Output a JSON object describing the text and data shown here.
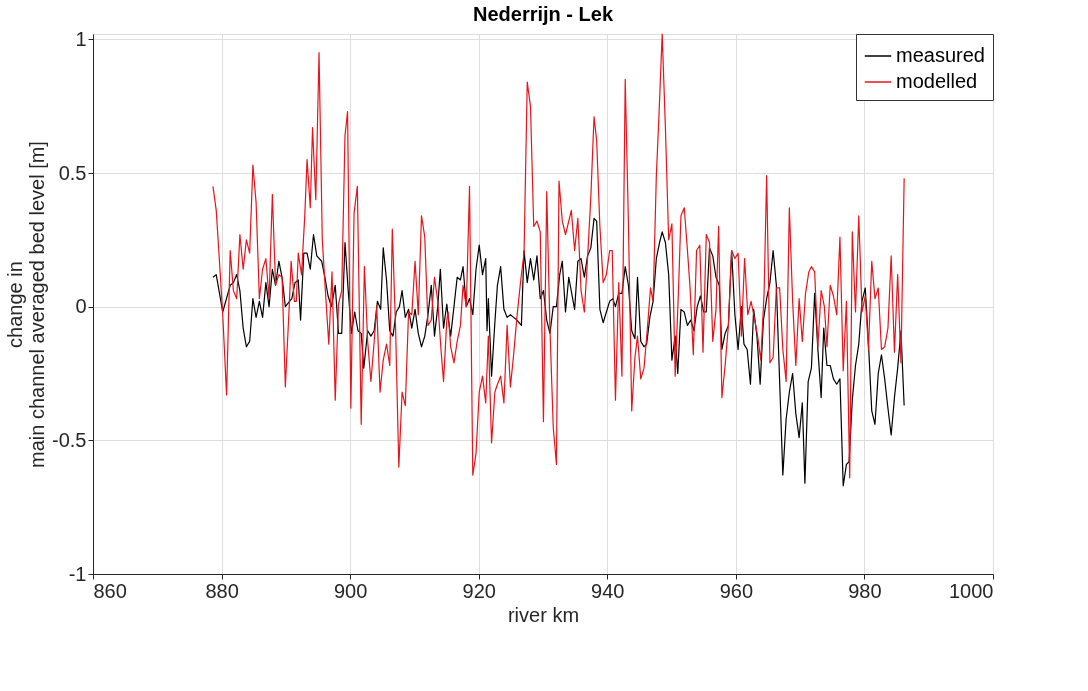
{
  "chart_data": {
    "type": "line",
    "title": "Nederrijn - Lek",
    "xlabel": "river km",
    "ylabel": "change in\nmain channel averaged bed level [m]",
    "xlim": [
      860,
      1000
    ],
    "xticks": [
      860,
      880,
      900,
      920,
      940,
      960,
      980,
      1000
    ],
    "ylim": [
      -1,
      1.02
    ],
    "yticks": [
      -1,
      -0.5,
      0,
      0.5,
      1
    ],
    "grid": true,
    "legend": "top right",
    "line_style": "solid",
    "marker": "none",
    "series": [
      {
        "name": "measured",
        "color": "#000000",
        "x": [
          878.66,
          879.17,
          880.18,
          881.34,
          881.84,
          882.35,
          882.85,
          883.36,
          883.86,
          884.37,
          884.87,
          885.37,
          885.88,
          886.38,
          886.89,
          887.39,
          887.9,
          888.4,
          888.91,
          889.41,
          889.92,
          890.92,
          891.43,
          891.93,
          892.29,
          892.79,
          893.3,
          893.8,
          894.3,
          894.81,
          895.57,
          896.07,
          896.57,
          897.08,
          897.68,
          898.19,
          898.69,
          899.2,
          899.7,
          900.21,
          900.71,
          901.22,
          901.72,
          902.12,
          902.73,
          903.23,
          903.74,
          904.24,
          904.75,
          905.15,
          905.66,
          906.16,
          906.66,
          907.17,
          907.67,
          908.08,
          908.58,
          909.09,
          909.59,
          910.1,
          910.6,
          911.1,
          911.61,
          912.11,
          912.62,
          913.12,
          913.63,
          914.03,
          914.53,
          915.04,
          915.24,
          915.64,
          916.15,
          916.65,
          917.16,
          917.56,
          918.07,
          918.57,
          919.08,
          919.58,
          920.08,
          920.59,
          921.09,
          921.29,
          921.5,
          922.0,
          922.51,
          922.91,
          923.41,
          923.92,
          924.42,
          924.93,
          925.43,
          925.94,
          926.64,
          927.05,
          927.55,
          928.05,
          928.56,
          929.06,
          929.57,
          930.07,
          930.58,
          931.08,
          931.59,
          932.09,
          932.6,
          933.0,
          933.5,
          934.01,
          934.92,
          935.42,
          935.92,
          936.43,
          936.93,
          937.44,
          937.94,
          938.35,
          938.85,
          939.36,
          939.86,
          940.37,
          940.87,
          941.27,
          941.78,
          942.28,
          942.79,
          943.29,
          943.8,
          944.3,
          944.7,
          945.21,
          945.71,
          946.12,
          946.62,
          947.13,
          947.63,
          948.13,
          948.54,
          949.04,
          949.55,
          950.05,
          950.56,
          950.96,
          951.46,
          951.97,
          952.47,
          952.98,
          953.48,
          953.99,
          954.49,
          955.0,
          955.4,
          955.9,
          956.41,
          956.91,
          957.42,
          957.83,
          958.33,
          958.84,
          959.34,
          959.85,
          960.35,
          960.86,
          961.26,
          961.76,
          962.27,
          962.77,
          963.28,
          963.78,
          964.29,
          964.79,
          965.3,
          965.8,
          966.3,
          966.81,
          967.31,
          967.82,
          968.32,
          968.83,
          969.33,
          969.84,
          970.34,
          970.74,
          971.25,
          971.75,
          972.26,
          972.76,
          973.27,
          973.67,
          974.17,
          974.68,
          975.18,
          975.69,
          976.19,
          976.7,
          977.2,
          977.61,
          978.11,
          978.61,
          979.12,
          979.62,
          980.13,
          980.63,
          981.14,
          981.64,
          982.15,
          982.65,
          983.15,
          983.66,
          984.16,
          984.67,
          985.17,
          985.68,
          986.18
        ],
        "values": [
          0.11,
          0.12,
          -0.02,
          0.08,
          0.09,
          0.12,
          0.06,
          -0.08,
          -0.15,
          -0.13,
          0.03,
          -0.04,
          0.02,
          -0.04,
          0.09,
          0.0,
          0.14,
          0.08,
          0.17,
          0.11,
          0.0,
          0.03,
          0.09,
          0.1,
          -0.05,
          0.2,
          0.2,
          0.14,
          0.27,
          0.19,
          0.17,
          0.11,
          0.04,
          0.0,
          0.08,
          -0.1,
          -0.1,
          0.24,
          0.06,
          -0.1,
          -0.02,
          -0.09,
          -0.1,
          -0.23,
          -0.09,
          -0.11,
          -0.09,
          0.02,
          -0.01,
          0.22,
          0.1,
          -0.09,
          -0.11,
          -0.02,
          0.0,
          0.06,
          -0.04,
          -0.01,
          -0.08,
          -0.01,
          -0.1,
          -0.15,
          -0.11,
          -0.03,
          0.08,
          -0.11,
          0.0,
          0.14,
          -0.08,
          0.01,
          -0.04,
          -0.11,
          0.0,
          0.11,
          0.1,
          0.15,
          0.0,
          0.03,
          -0.03,
          0.14,
          0.23,
          0.12,
          0.18,
          -0.09,
          0.03,
          -0.26,
          -0.06,
          0.08,
          0.15,
          -0.01,
          -0.04,
          -0.03,
          -0.04,
          -0.05,
          -0.07,
          0.21,
          0.09,
          0.18,
          0.1,
          0.19,
          0.03,
          0.06,
          -0.05,
          -0.1,
          0.0,
          0.0,
          0.12,
          0.17,
          -0.02,
          0.11,
          -0.01,
          0.17,
          0.18,
          0.11,
          0.19,
          0.22,
          0.33,
          0.32,
          -0.01,
          -0.06,
          -0.02,
          0.02,
          0.03,
          0.0,
          0.05,
          0.05,
          0.15,
          0.08,
          -0.09,
          -0.12,
          0.11,
          -0.13,
          -0.15,
          -0.14,
          -0.04,
          0.02,
          0.18,
          0.24,
          0.28,
          0.24,
          0.12,
          -0.2,
          -0.11,
          -0.25,
          -0.01,
          -0.02,
          -0.07,
          -0.05,
          -0.09,
          0.0,
          0.04,
          -0.02,
          -0.02,
          0.22,
          0.19,
          0.11,
          0.08,
          -0.16,
          -0.1,
          -0.07,
          0.21,
          -0.03,
          -0.16,
          0.0,
          -0.14,
          -0.16,
          -0.29,
          -0.01,
          -0.11,
          -0.29,
          -0.05,
          0.03,
          0.09,
          0.21,
          0.08,
          -0.28,
          -0.63,
          -0.42,
          -0.32,
          -0.25,
          -0.4,
          -0.49,
          -0.36,
          -0.66,
          -0.28,
          -0.23,
          0.05,
          -0.16,
          -0.34,
          -0.08,
          -0.22,
          -0.22,
          -0.27,
          -0.29,
          -0.27,
          -0.67,
          -0.59,
          -0.58,
          -0.35,
          -0.22,
          -0.14,
          0.02,
          0.07,
          -0.14,
          -0.39,
          -0.44,
          -0.25,
          -0.18,
          -0.27,
          -0.38,
          -0.48,
          -0.34,
          -0.23,
          -0.09,
          -0.37
        ]
      },
      {
        "name": "modelled",
        "color": "#e8141b",
        "x": [
          878.66,
          879.17,
          879.67,
          880.18,
          880.78,
          881.34,
          881.84,
          882.35,
          882.85,
          883.36,
          883.86,
          884.37,
          884.87,
          885.37,
          885.88,
          886.38,
          886.89,
          887.39,
          887.9,
          888.4,
          888.91,
          889.41,
          889.92,
          890.52,
          890.82,
          891.33,
          891.63,
          891.93,
          892.44,
          892.94,
          893.3,
          893.8,
          894.15,
          894.66,
          895.16,
          895.67,
          896.17,
          896.68,
          897.18,
          897.68,
          898.19,
          898.69,
          899.2,
          899.6,
          900.11,
          900.61,
          901.12,
          901.72,
          902.22,
          902.73,
          903.23,
          903.74,
          904.14,
          904.65,
          905.15,
          905.66,
          906.16,
          906.56,
          907.07,
          907.57,
          908.08,
          908.58,
          909.09,
          909.59,
          910.1,
          910.6,
          911.1,
          911.61,
          912.11,
          912.62,
          913.12,
          913.63,
          914.13,
          914.53,
          915.04,
          915.24,
          915.64,
          916.15,
          916.65,
          917.16,
          917.56,
          918.07,
          918.57,
          919.08,
          919.58,
          920.08,
          920.59,
          921.09,
          921.5,
          922.0,
          922.51,
          922.91,
          923.41,
          923.92,
          924.42,
          924.93,
          925.43,
          925.94,
          926.54,
          927.05,
          927.55,
          928.05,
          928.56,
          929.06,
          929.57,
          930.07,
          930.58,
          931.08,
          931.59,
          932.09,
          932.49,
          933.0,
          933.5,
          934.01,
          934.41,
          934.92,
          935.42,
          935.92,
          936.43,
          936.93,
          937.44,
          937.94,
          938.35,
          938.85,
          939.36,
          939.86,
          940.37,
          940.77,
          941.27,
          941.78,
          942.28,
          942.79,
          943.29,
          943.8,
          944.3,
          944.7,
          945.21,
          945.71,
          946.21,
          946.72,
          947.13,
          947.63,
          948.03,
          948.54,
          949.04,
          949.55,
          950.05,
          950.56,
          951.06,
          951.46,
          951.97,
          952.47,
          952.88,
          953.38,
          953.89,
          954.39,
          954.89,
          955.4,
          955.9,
          956.41,
          956.91,
          957.32,
          957.83,
          958.33,
          958.84,
          959.34,
          959.85,
          960.35,
          960.86,
          961.36,
          961.86,
          962.37,
          962.87,
          963.38,
          963.88,
          964.39,
          964.79,
          965.3,
          965.8,
          966.3,
          966.81,
          967.31,
          967.82,
          968.32,
          968.83,
          969.33,
          969.84,
          970.34,
          970.84,
          971.35,
          971.75,
          972.26,
          972.76,
          973.27,
          973.77,
          974.17,
          974.68,
          975.18,
          975.69,
          976.19,
          976.7,
          977.2,
          977.71,
          978.11,
          978.61,
          979.12,
          979.62,
          980.13,
          980.63,
          981.14,
          981.64,
          982.15,
          982.65,
          983.15,
          983.66,
          984.16,
          984.67,
          985.17,
          985.68,
          986.18
        ],
        "values": [
          0.45,
          0.36,
          0.17,
          -0.03,
          -0.33,
          0.21,
          0.06,
          0.03,
          0.27,
          0.14,
          0.25,
          0.2,
          0.53,
          0.39,
          0.03,
          0.14,
          0.18,
          0.03,
          0.42,
          0.08,
          0.12,
          0.11,
          -0.3,
          0.0,
          0.17,
          0.02,
          0.02,
          0.2,
          0.12,
          0.34,
          0.55,
          0.37,
          0.67,
          0.4,
          0.95,
          0.25,
          0.05,
          -0.14,
          0.13,
          -0.35,
          0.01,
          0.06,
          0.64,
          0.73,
          -0.38,
          0.35,
          0.45,
          -0.44,
          0.15,
          -0.13,
          -0.28,
          -0.13,
          0.0,
          -0.32,
          -0.2,
          -0.14,
          -0.22,
          0.29,
          -0.08,
          -0.6,
          -0.32,
          -0.37,
          -0.02,
          -0.03,
          0.17,
          -0.03,
          0.34,
          0.26,
          -0.07,
          -0.05,
          0.11,
          0.02,
          -0.16,
          -0.28,
          -0.05,
          -0.02,
          -0.15,
          -0.21,
          -0.13,
          -0.07,
          0.08,
          0.0,
          0.45,
          -0.63,
          -0.55,
          -0.32,
          -0.26,
          -0.36,
          -0.11,
          -0.51,
          -0.32,
          -0.29,
          -0.26,
          -0.36,
          -0.07,
          -0.3,
          -0.18,
          -0.04,
          0.1,
          0.2,
          0.84,
          0.75,
          0.3,
          0.32,
          0.28,
          -0.43,
          0.43,
          -0.08,
          -0.45,
          -0.59,
          0.47,
          0.32,
          0.27,
          0.32,
          0.36,
          0.21,
          0.33,
          0.06,
          -0.02,
          0.18,
          0.41,
          0.71,
          0.62,
          0.3,
          0.09,
          0.12,
          0.21,
          0.21,
          -0.35,
          0.09,
          -0.26,
          0.85,
          0.31,
          -0.39,
          -0.19,
          -0.11,
          -0.27,
          -0.23,
          -0.09,
          0.07,
          0.02,
          0.49,
          0.71,
          1.02,
          0.67,
          0.25,
          0.31,
          -0.26,
          0.05,
          0.34,
          0.37,
          0.21,
          0.07,
          -0.18,
          0.21,
          0.23,
          -0.17,
          0.27,
          0.24,
          -0.13,
          -0.01,
          0.3,
          -0.34,
          -0.22,
          -0.07,
          0.21,
          0.18,
          0.2,
          -0.11,
          0.18,
          -0.03,
          0.02,
          -0.04,
          -0.11,
          -0.2,
          0.05,
          0.49,
          -0.21,
          -0.19,
          0.07,
          0.07,
          -0.16,
          -0.28,
          0.37,
          0.02,
          -0.22,
          0.03,
          -0.13,
          0.05,
          0.13,
          0.15,
          0.13,
          -0.15,
          0.06,
          0.0,
          -0.15,
          0.08,
          0.04,
          -0.03,
          0.26,
          -0.24,
          0.02,
          -0.64,
          0.28,
          -0.02,
          0.34,
          -0.02,
          0.04,
          -0.16,
          0.17,
          0.03,
          0.07,
          -0.16,
          -0.15,
          -0.08,
          0.19,
          -0.17,
          0.12,
          -0.21,
          0.48
        ]
      }
    ]
  }
}
